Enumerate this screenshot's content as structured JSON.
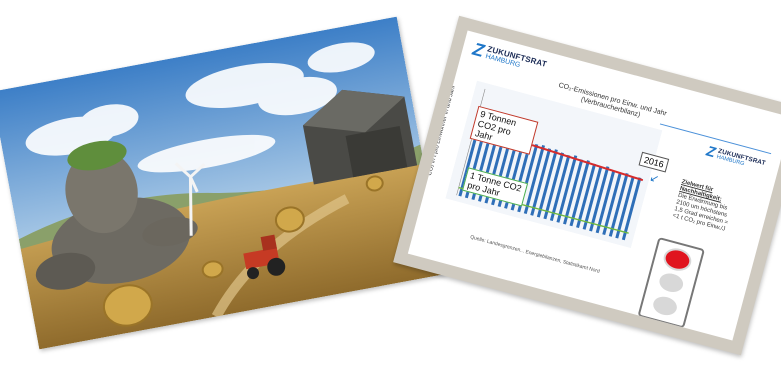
{
  "photo": {
    "description_icon": "landscape-photo"
  },
  "slide": {
    "logo": {
      "line1": "ZUKUNFTSRAT",
      "line2": "HAMBURG",
      "mark": "Z"
    },
    "chart_title_line1": "CO₂-Emissionen pro Einw. und Jahr",
    "chart_title_line2": "(Verbraucherbilanz)",
    "y_axis_label": "CO₂ in t pro Einwohner*in und Jahr",
    "callout_high": "9 Tonnen CO2 pro Jahr",
    "callout_low": "1 Tonne CO2 pro Jahr",
    "year_badge": "2016",
    "goal_heading": "Zielwert für Nachhaltigkeit:",
    "goal_body": "Die Erwärmung bis 2100 um höchstens 1,5 Grad erreichen = <1 t CO₂ pro Einw./J",
    "source": "Quelle: Landesgrenzen... Energiebilanzen, Statistikamt Nord",
    "colors": {
      "bars": "#2f6fb8",
      "high_line": "#d62c2c",
      "low_line": "#6fb83f",
      "accent": "#1f77c9"
    }
  },
  "chart_data": {
    "type": "bar",
    "title": "CO₂-Emissionen pro Einw. und Jahr (Verbraucherbilanz)",
    "ylabel": "CO₂ in t pro Einwohner*in und Jahr",
    "ylim": [
      0,
      14
    ],
    "values": [
      10.5,
      9.8,
      9.6,
      9.5,
      9.3,
      9.4,
      9.2,
      9.0,
      9.1,
      8.9,
      9.0,
      8.8,
      8.9,
      8.7,
      8.6,
      8.8,
      8.5,
      8.6,
      8.4,
      8.3,
      8.5,
      8.2,
      8.1,
      8.3,
      8.0,
      8.2
    ],
    "reference_lines": [
      {
        "label": "9 Tonnen CO2 pro Jahr",
        "value": 9
      },
      {
        "label": "1 Tonne CO2 pro Jahr",
        "value": 1
      }
    ]
  }
}
